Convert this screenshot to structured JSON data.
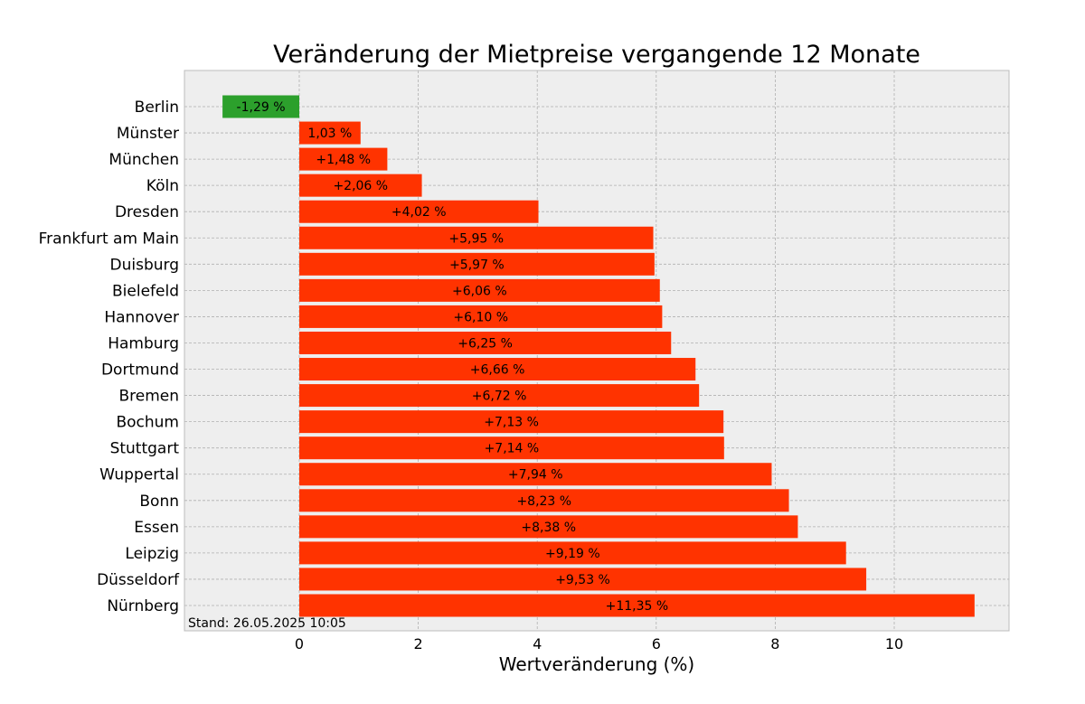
{
  "chart_data": {
    "type": "bar",
    "orientation": "horizontal",
    "title": "Veränderung der Mietpreise vergangende 12 Monate",
    "xlabel": "Wertveränderung (%)",
    "ylabel": "",
    "xlim": [
      -1.93,
      11.93
    ],
    "xticks": [
      0,
      2,
      4,
      6,
      8,
      10
    ],
    "grid": true,
    "footnote": "Stand: 26.05.2025 10:05",
    "categories": [
      "Berlin",
      "Münster",
      "München",
      "Köln",
      "Dresden",
      "Frankfurt am Main",
      "Duisburg",
      "Bielefeld",
      "Hannover",
      "Hamburg",
      "Dortmund",
      "Bremen",
      "Bochum",
      "Stuttgart",
      "Wuppertal",
      "Bonn",
      "Essen",
      "Leipzig",
      "Düsseldorf",
      "Nürnberg"
    ],
    "values": [
      -1.29,
      1.03,
      1.48,
      2.06,
      4.02,
      5.95,
      5.97,
      6.06,
      6.1,
      6.25,
      6.66,
      6.72,
      7.13,
      7.14,
      7.94,
      8.23,
      8.38,
      9.19,
      9.53,
      11.35
    ],
    "data_labels": [
      "-1,29 %",
      "1,03 %",
      "+1,48 %",
      "+2,06 %",
      "+4,02 %",
      "+5,95 %",
      "+5,97 %",
      "+6,06 %",
      "+6,10 %",
      "+6,25 %",
      "+6,66 %",
      "+6,72 %",
      "+7,13 %",
      "+7,14 %",
      "+7,94 %",
      "+8,23 %",
      "+8,38 %",
      "+9,19 %",
      "+9,53 %",
      "+11,35 %"
    ],
    "colors": {
      "positive": "#ff3300",
      "negative": "#2ca02c",
      "plot_background": "#eeeeee",
      "grid": "#b0b0b0",
      "frame": "#bcbcbc"
    }
  }
}
